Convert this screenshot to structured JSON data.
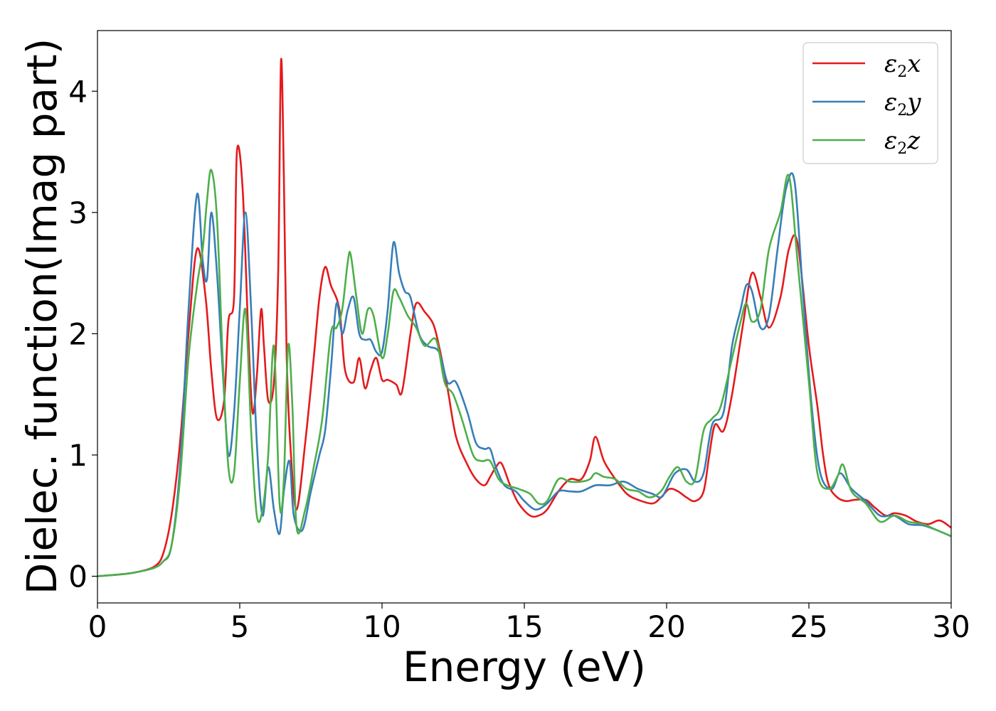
{
  "chart_data": {
    "type": "line",
    "xlabel": "Energy (eV)",
    "ylabel": "Dielec. function(Imag part)",
    "xlim": [
      0,
      30
    ],
    "ylim": [
      -0.22,
      4.5
    ],
    "xticks": [
      "0",
      "5",
      "10",
      "15",
      "20",
      "25",
      "30"
    ],
    "yticks": [
      "0",
      "1",
      "2",
      "3",
      "4"
    ],
    "grid": false,
    "legend_position": "top-right",
    "series": [
      {
        "name": "ε2x",
        "legend_base": "ε",
        "legend_sub": "2",
        "legend_var": "x",
        "color": "#e41a1c",
        "x": [
          0,
          1,
          1.5,
          2,
          2.3,
          2.6,
          2.9,
          3.2,
          3.5,
          3.8,
          4.0,
          4.2,
          4.45,
          4.6,
          4.8,
          4.9,
          5.1,
          5.3,
          5.45,
          5.6,
          5.75,
          5.85,
          6.0,
          6.2,
          6.35,
          6.45,
          6.55,
          6.65,
          6.8,
          7.0,
          7.3,
          7.6,
          7.8,
          8.0,
          8.2,
          8.5,
          8.7,
          9.0,
          9.2,
          9.4,
          9.6,
          9.8,
          10.0,
          10.2,
          10.5,
          10.7,
          11.0,
          11.2,
          11.5,
          11.8,
          12.0,
          12.3,
          12.6,
          13.0,
          13.3,
          13.6,
          13.8,
          14.0,
          14.2,
          14.5,
          14.8,
          15.2,
          15.5,
          15.8,
          16.2,
          16.6,
          17.0,
          17.3,
          17.5,
          17.8,
          18.2,
          18.6,
          19.0,
          19.5,
          19.8,
          20.1,
          20.4,
          20.7,
          21.0,
          21.3,
          21.5,
          21.7,
          22.0,
          22.3,
          22.7,
          23.0,
          23.3,
          23.6,
          24.0,
          24.3,
          24.6,
          25.0,
          25.3,
          25.5,
          25.7,
          26.0,
          26.3,
          26.6,
          27.0,
          27.3,
          27.7,
          28.0,
          28.4,
          28.8,
          29.2,
          29.6,
          30.0
        ],
        "y": [
          0,
          0.02,
          0.04,
          0.08,
          0.18,
          0.5,
          1.1,
          2.0,
          2.7,
          2.3,
          1.7,
          1.3,
          1.45,
          2.1,
          2.3,
          3.5,
          3.2,
          2.0,
          1.35,
          1.65,
          2.2,
          1.9,
          1.45,
          1.6,
          2.5,
          4.25,
          3.3,
          1.8,
          1.0,
          0.55,
          1.1,
          1.8,
          2.3,
          2.55,
          2.4,
          2.2,
          1.7,
          1.6,
          1.8,
          1.55,
          1.7,
          1.8,
          1.62,
          1.62,
          1.58,
          1.52,
          2.0,
          2.25,
          2.18,
          2.08,
          1.9,
          1.55,
          1.15,
          0.92,
          0.8,
          0.75,
          0.82,
          0.9,
          0.93,
          0.75,
          0.6,
          0.5,
          0.5,
          0.55,
          0.7,
          0.8,
          0.8,
          0.95,
          1.15,
          0.95,
          0.8,
          0.68,
          0.63,
          0.6,
          0.65,
          0.72,
          0.7,
          0.65,
          0.62,
          0.7,
          1.0,
          1.25,
          1.2,
          1.5,
          2.1,
          2.5,
          2.3,
          2.05,
          2.3,
          2.7,
          2.75,
          1.9,
          1.4,
          1.0,
          0.75,
          0.65,
          0.62,
          0.63,
          0.63,
          0.57,
          0.5,
          0.52,
          0.5,
          0.45,
          0.43,
          0.46,
          0.4
        ]
      },
      {
        "name": "ε2y",
        "legend_base": "ε",
        "legend_sub": "2",
        "legend_var": "y",
        "color": "#377eb8",
        "x": [
          0,
          1,
          1.5,
          2,
          2.3,
          2.6,
          2.9,
          3.2,
          3.5,
          3.7,
          3.85,
          4.0,
          4.2,
          4.4,
          4.6,
          4.8,
          5.0,
          5.2,
          5.4,
          5.6,
          5.8,
          6.0,
          6.2,
          6.4,
          6.55,
          6.75,
          6.9,
          7.2,
          7.5,
          7.8,
          8.0,
          8.2,
          8.4,
          8.6,
          8.8,
          9.0,
          9.2,
          9.4,
          9.6,
          9.8,
          10.0,
          10.2,
          10.4,
          10.6,
          10.8,
          11.0,
          11.3,
          11.6,
          12.0,
          12.3,
          12.6,
          13.0,
          13.3,
          13.6,
          13.8,
          14.0,
          14.3,
          14.7,
          15.0,
          15.4,
          15.8,
          16.2,
          16.6,
          17.0,
          17.5,
          18.0,
          18.5,
          19.0,
          19.5,
          19.8,
          20.0,
          20.3,
          20.7,
          21.0,
          21.3,
          21.6,
          22.0,
          22.3,
          22.6,
          22.8,
          23.0,
          23.3,
          23.6,
          23.9,
          24.2,
          24.5,
          24.8,
          25.1,
          25.4,
          25.8,
          26.1,
          26.5,
          27.0,
          27.5,
          28.0,
          28.5,
          29.0,
          29.5,
          30.0
        ],
        "y": [
          0,
          0.02,
          0.04,
          0.07,
          0.12,
          0.25,
          0.9,
          2.2,
          3.15,
          2.6,
          2.45,
          3.0,
          2.5,
          1.7,
          1.0,
          1.35,
          2.2,
          3.0,
          2.2,
          1.1,
          0.5,
          0.9,
          0.55,
          0.35,
          0.7,
          0.95,
          0.5,
          0.38,
          0.7,
          1.0,
          1.2,
          1.7,
          2.25,
          2.0,
          2.2,
          2.3,
          2.0,
          1.95,
          1.95,
          1.85,
          1.85,
          2.2,
          2.75,
          2.5,
          2.35,
          2.3,
          2.0,
          1.9,
          1.85,
          1.6,
          1.6,
          1.35,
          1.1,
          1.05,
          1.05,
          0.9,
          0.75,
          0.7,
          0.62,
          0.55,
          0.6,
          0.7,
          0.7,
          0.7,
          0.75,
          0.75,
          0.78,
          0.72,
          0.68,
          0.65,
          0.72,
          0.85,
          0.88,
          0.78,
          0.85,
          1.25,
          1.35,
          1.9,
          2.2,
          2.4,
          2.35,
          2.05,
          2.15,
          2.7,
          3.2,
          3.25,
          2.3,
          1.4,
          0.85,
          0.72,
          0.85,
          0.72,
          0.62,
          0.5,
          0.5,
          0.43,
          0.42,
          0.38,
          0.33
        ]
      },
      {
        "name": "ε2z",
        "legend_base": "ε",
        "legend_sub": "2",
        "legend_var": "z",
        "color": "#4daf4a",
        "x": [
          0,
          1,
          1.5,
          2,
          2.3,
          2.6,
          2.9,
          3.2,
          3.5,
          3.7,
          3.85,
          4.0,
          4.2,
          4.4,
          4.6,
          4.8,
          5.0,
          5.2,
          5.4,
          5.6,
          5.8,
          6.0,
          6.2,
          6.4,
          6.55,
          6.7,
          6.85,
          7.0,
          7.3,
          7.6,
          7.9,
          8.2,
          8.4,
          8.6,
          8.8,
          8.9,
          9.1,
          9.3,
          9.5,
          9.7,
          10.0,
          10.2,
          10.4,
          10.6,
          10.9,
          11.2,
          11.5,
          11.9,
          12.2,
          12.5,
          12.8,
          13.2,
          13.5,
          13.8,
          14.1,
          14.4,
          14.8,
          15.2,
          15.5,
          15.8,
          16.2,
          16.6,
          17.0,
          17.3,
          17.5,
          17.8,
          18.2,
          18.6,
          19.0,
          19.4,
          19.8,
          20.1,
          20.4,
          20.7,
          21.0,
          21.3,
          21.6,
          21.9,
          22.3,
          22.6,
          22.8,
          23.0,
          23.3,
          23.6,
          24.0,
          24.3,
          24.6,
          25.0,
          25.3,
          25.7,
          26.0,
          26.2,
          26.5,
          27.0,
          27.5,
          28.0,
          28.5,
          29.0,
          29.5,
          30.0
        ],
        "y": [
          0,
          0.02,
          0.04,
          0.07,
          0.12,
          0.25,
          0.8,
          1.8,
          2.4,
          2.7,
          3.1,
          3.35,
          2.95,
          1.8,
          0.9,
          0.85,
          1.6,
          2.2,
          1.2,
          0.5,
          0.55,
          1.0,
          1.9,
          0.6,
          0.8,
          1.9,
          1.4,
          0.4,
          0.55,
          0.9,
          1.3,
          2.0,
          2.05,
          2.2,
          2.6,
          2.65,
          2.3,
          2.0,
          2.2,
          2.15,
          1.8,
          2.0,
          2.35,
          2.3,
          2.15,
          2.05,
          1.9,
          1.95,
          1.6,
          1.5,
          1.3,
          1.0,
          0.95,
          0.95,
          0.8,
          0.75,
          0.72,
          0.68,
          0.6,
          0.62,
          0.8,
          0.78,
          0.78,
          0.8,
          0.85,
          0.82,
          0.8,
          0.72,
          0.7,
          0.65,
          0.7,
          0.82,
          0.9,
          0.78,
          0.8,
          1.2,
          1.3,
          1.4,
          1.8,
          2.1,
          2.25,
          2.1,
          2.2,
          2.7,
          3.0,
          3.3,
          2.6,
          1.6,
          0.85,
          0.72,
          0.82,
          0.92,
          0.7,
          0.6,
          0.45,
          0.5,
          0.45,
          0.43,
          0.38,
          0.33
        ]
      }
    ]
  }
}
